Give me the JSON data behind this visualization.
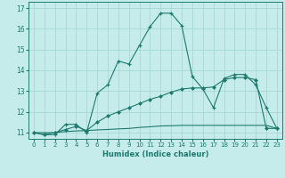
{
  "xlabel": "Humidex (Indice chaleur)",
  "xlim": [
    -0.5,
    23.5
  ],
  "ylim": [
    10.7,
    17.3
  ],
  "yticks": [
    11,
    12,
    13,
    14,
    15,
    16,
    17
  ],
  "xticks": [
    0,
    1,
    2,
    3,
    4,
    5,
    6,
    7,
    8,
    9,
    10,
    11,
    12,
    13,
    14,
    15,
    16,
    17,
    18,
    19,
    20,
    21,
    22,
    23
  ],
  "background_color": "#c5ecea",
  "grid_color": "#a8d8d4",
  "line_color": "#1e7a6e",
  "line1_y": [
    11.0,
    10.9,
    10.9,
    11.4,
    11.4,
    11.0,
    12.9,
    13.3,
    14.45,
    14.3,
    15.2,
    16.1,
    16.75,
    16.75,
    16.15,
    13.7,
    13.1,
    12.2,
    13.6,
    13.8,
    13.8,
    13.3,
    12.2,
    11.2
  ],
  "line2_y": [
    11.0,
    10.9,
    11.0,
    11.15,
    11.3,
    11.1,
    11.5,
    11.8,
    12.0,
    12.2,
    12.4,
    12.6,
    12.75,
    12.95,
    13.1,
    13.15,
    13.15,
    13.2,
    13.55,
    13.65,
    13.65,
    13.55,
    11.2,
    11.2
  ],
  "line3_y": [
    11.0,
    11.0,
    11.0,
    11.05,
    11.08,
    11.1,
    11.13,
    11.15,
    11.18,
    11.2,
    11.25,
    11.28,
    11.32,
    11.33,
    11.35,
    11.35,
    11.35,
    11.35,
    11.35,
    11.35,
    11.35,
    11.35,
    11.35,
    11.2
  ]
}
